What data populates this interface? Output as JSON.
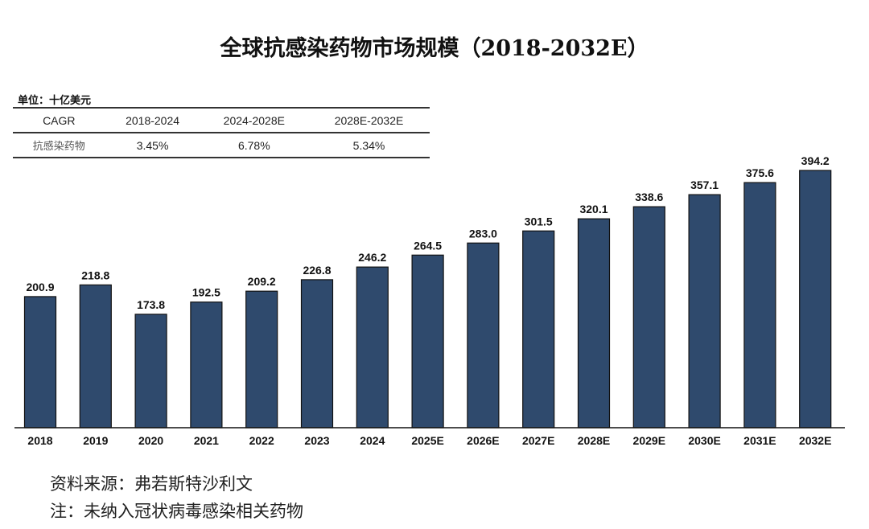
{
  "chart_data": {
    "type": "bar",
    "title": "全球抗感染药物市场规模（2018-2032E）",
    "categories": [
      "2018",
      "2019",
      "2020",
      "2021",
      "2022",
      "2023",
      "2024",
      "2025E",
      "2026E",
      "2027E",
      "2028E",
      "2029E",
      "2030E",
      "2031E",
      "2032E"
    ],
    "values": [
      200.9,
      218.8,
      173.8,
      192.5,
      209.2,
      226.8,
      246.2,
      264.5,
      283.0,
      301.5,
      320.1,
      338.6,
      357.1,
      375.6,
      394.2
    ],
    "data_labels": [
      "200.9",
      "218.8",
      "173.8",
      "192.5",
      "209.2",
      "226.8",
      "246.2",
      "264.5",
      "283.0",
      "301.5",
      "320.1",
      "338.6",
      "357.1",
      "375.6",
      "394.2"
    ],
    "ylim": [
      0,
      400
    ],
    "grid": false,
    "bar_color": "#2f4a6d",
    "unit": "单位：十亿美元"
  },
  "cagr_table": {
    "headers": [
      "CAGR",
      "2018-2024",
      "2024-2028E",
      "2028E-2032E"
    ],
    "row": [
      "抗感染药物",
      "3.45%",
      "6.78%",
      "5.34%"
    ]
  },
  "footer": {
    "source": "资料来源：弗若斯特沙利文",
    "note": "注：未纳入冠状病毒感染相关药物"
  }
}
